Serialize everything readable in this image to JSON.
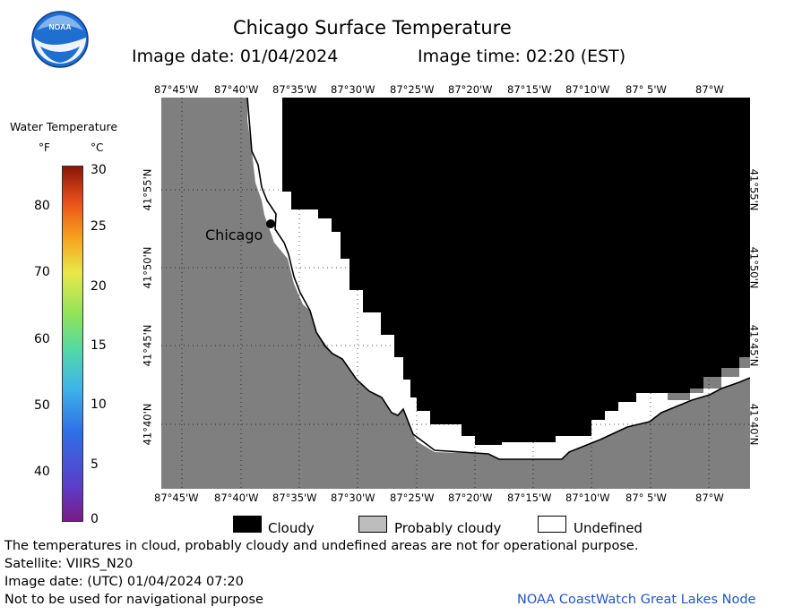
{
  "header": {
    "title": "Chicago Surface Temperature",
    "image_date": "Image date: 01/04/2024",
    "image_time": "Image time: 02:20 (EST)",
    "logo_text": "NOAA"
  },
  "colorbar": {
    "title": "Water Temperature",
    "unit_f": "°F",
    "unit_c": "°C",
    "f_ticks": [
      "80",
      "70",
      "60",
      "50",
      "40"
    ],
    "c_ticks": [
      "30",
      "25",
      "20",
      "15",
      "10",
      "5",
      "0"
    ],
    "range_c": [
      0,
      30
    ]
  },
  "map": {
    "lon_labels": [
      "87°45'W",
      "87°40'W",
      "87°35'W",
      "87°30'W",
      "87°25'W",
      "87°20'W",
      "87°15'W",
      "87°10'W",
      "87° 5'W",
      "87°W"
    ],
    "lat_labels": [
      "41°55'N",
      "41°50'N",
      "41°45'N",
      "41°40'N"
    ],
    "city_label": "Chicago",
    "colors": {
      "land": "#7f7f7f",
      "cloudy": "#000000",
      "undefined": "#ffffff"
    }
  },
  "legend": {
    "cloudy": "Cloudy",
    "probably_cloudy": "Probably cloudy",
    "undefined": "Undefined",
    "colors": {
      "cloudy": "#000000",
      "probably_cloudy": "#bdbdbd",
      "undefined": "#ffffff"
    }
  },
  "footer": {
    "disclaimer": "The temperatures in cloud, probably cloudy and undefined areas are not for operational purpose.",
    "satellite": "Satellite: VIIRS_N20",
    "utc_date": "Image date: (UTC) 01/04/2024  07:20",
    "nav_warning": "Not to be used for navigational purpose",
    "node": "NOAA CoastWatch Great Lakes Node"
  }
}
